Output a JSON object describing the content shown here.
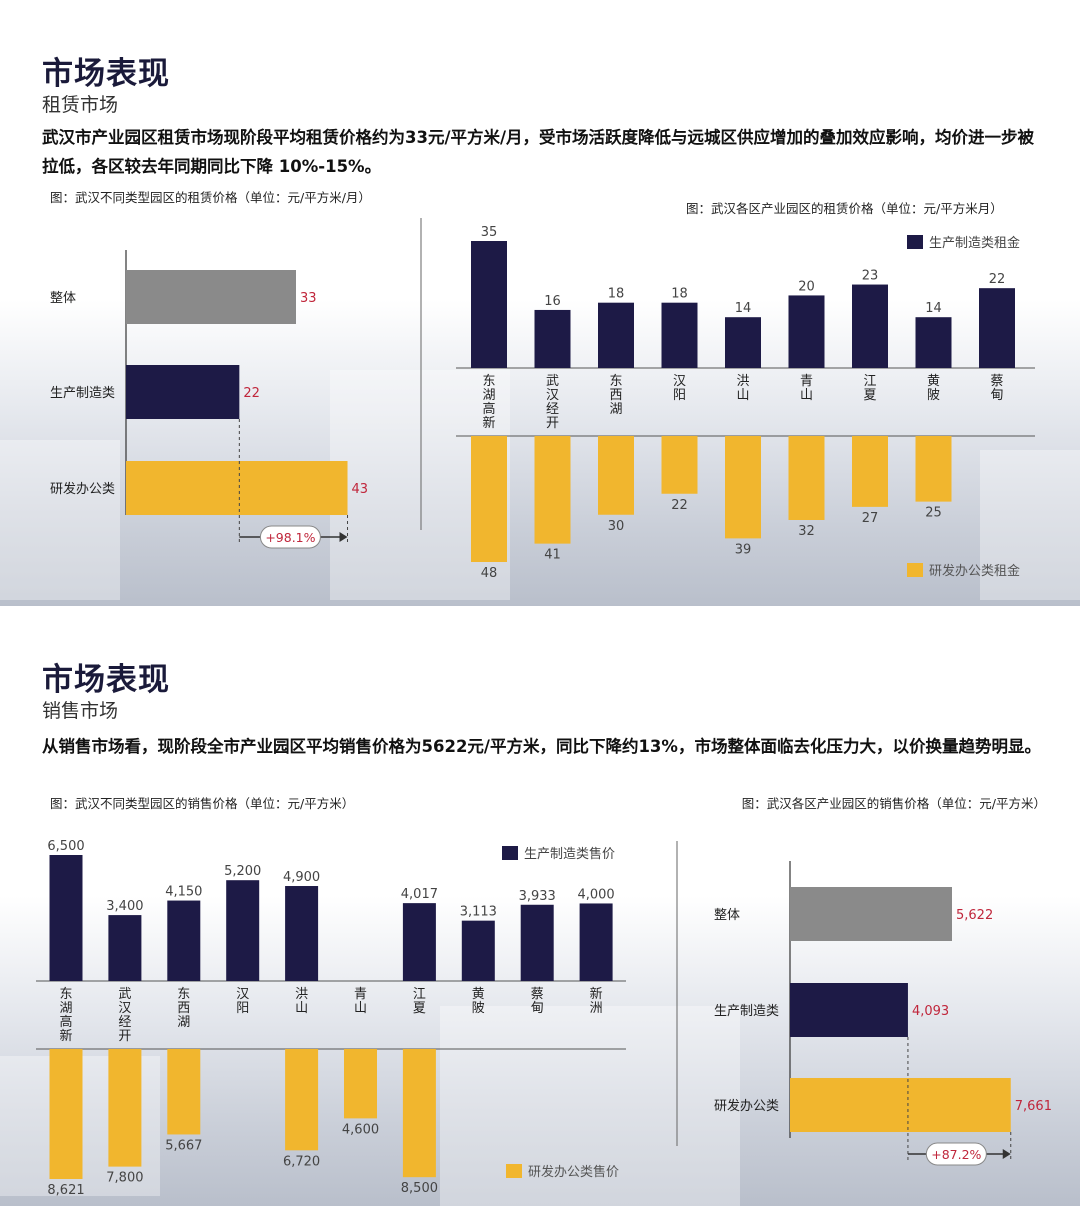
{
  "colors": {
    "navy": "#1d1a46",
    "yellow": "#f1b62e",
    "gray": "#8a8a8a",
    "red_value": "#c0263b"
  },
  "rental": {
    "title": "市场表现",
    "subtitle": "租赁市场",
    "description": "武汉市产业园区租赁市场现阶段平均租赁价格约为33元/平方米/月，受市场活跃度降低与远城区供应增加的叠加效应影响，均价进一步被拉低，各区较去年同期同比下降 10%-15%。",
    "chart_left_caption": "图：武汉不同类型园区的租赁价格（单位：元/平方米/月）",
    "chart_right_caption": "图：武汉各区产业园区的租赁价格（单位：元/平方米月）"
  },
  "sales": {
    "title": "市场表现",
    "subtitle": "销售市场",
    "description": "从销售市场看，现阶段全市产业园区平均销售价格为5622元/平方米，同比下降约13%，市场整体面临去化压力大，以价换量趋势明显。",
    "chart_left_caption": "图：武汉不同类型园区的销售价格（单位：元/平方米）",
    "chart_right_caption": "图：武汉各区产业园区的销售价格（单位：元/平方米）"
  },
  "chart_data": [
    {
      "type": "bar",
      "orientation": "horizontal",
      "categories": [
        "整体",
        "生产制造类",
        "研发办公类"
      ],
      "values": [
        33,
        22,
        43
      ],
      "value_labels": [
        "33",
        "22",
        "43"
      ],
      "colors": [
        "#8a8a8a",
        "#1d1a46",
        "#f1b62e"
      ],
      "annotation": "+98.1%"
    },
    {
      "type": "bar",
      "orientation": "diverging",
      "categories": [
        "东湖高新",
        "武汉经开",
        "东西湖",
        "汉阳",
        "洪山",
        "青山",
        "江夏",
        "黄陂",
        "蔡甸"
      ],
      "series": [
        {
          "name": "生产制造类租金",
          "values": [
            35,
            16,
            18,
            18,
            14,
            20,
            23,
            14,
            22
          ],
          "labels": [
            "35",
            "16",
            "18",
            "18",
            "14",
            "20",
            "23",
            "14",
            "22"
          ]
        },
        {
          "name": "研发办公类租金",
          "values": [
            48,
            41,
            30,
            22,
            39,
            32,
            27,
            25,
            null
          ],
          "labels": [
            "48",
            "41",
            "30",
            "22",
            "39",
            "32",
            "27",
            "25",
            ""
          ]
        }
      ]
    },
    {
      "type": "bar",
      "orientation": "diverging",
      "categories": [
        "东湖高新",
        "武汉经开",
        "东西湖",
        "汉阳",
        "洪山",
        "青山",
        "江夏",
        "黄陂",
        "蔡甸",
        "新洲"
      ],
      "series": [
        {
          "name": "生产制造类售价",
          "values": [
            6500,
            3400,
            4150,
            5200,
            4900,
            null,
            4017,
            3113,
            3933,
            4000
          ],
          "labels": [
            "6,500",
            "3,400",
            "4,150",
            "5,200",
            "4,900",
            "",
            "4,017",
            "3,113",
            "3,933",
            "4,000"
          ]
        },
        {
          "name": "研发办公类售价",
          "values": [
            8621,
            7800,
            5667,
            null,
            6720,
            4600,
            8500,
            null,
            null,
            null
          ],
          "labels": [
            "8,621",
            "7,800",
            "5,667",
            "",
            "6,720",
            "4,600",
            "8,500",
            "",
            "",
            ""
          ]
        }
      ]
    },
    {
      "type": "bar",
      "orientation": "horizontal",
      "categories": [
        "整体",
        "生产制造类",
        "研发办公类"
      ],
      "values": [
        5622,
        4093,
        7661
      ],
      "value_labels": [
        "5,622",
        "4,093",
        "7,661"
      ],
      "colors": [
        "#8a8a8a",
        "#1d1a46",
        "#f1b62e"
      ],
      "annotation": "+87.2%"
    }
  ]
}
